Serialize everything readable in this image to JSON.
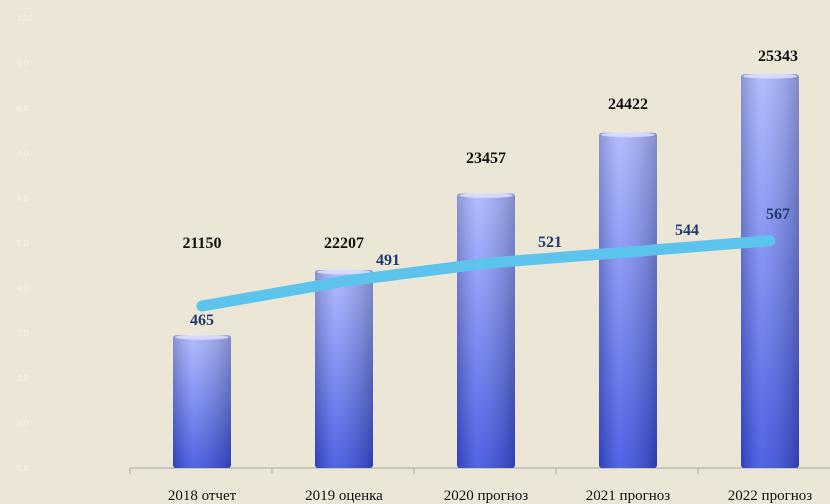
{
  "chart_data": {
    "type": "bar",
    "categories": [
      "2018 отчет",
      "2019 оценка",
      "2020 прогноз",
      "2021 прогноз",
      "2022 прогноз"
    ],
    "series": [
      {
        "values": [
          21150,
          22207,
          23457,
          24422,
          25343
        ]
      },
      {
        "values": [
          465,
          491,
          521,
          544,
          567
        ],
        "type": "line"
      }
    ],
    "bar_heights": [
      2.95,
      4.4,
      6.1,
      7.45,
      8.75
    ],
    "line_levels": [
      3.6,
      4.15,
      4.55,
      4.8,
      5.05
    ],
    "y_ticks": [
      "0,0",
      "1,0",
      "2,0",
      "3,0",
      "4,0",
      "5,0",
      "6,0",
      "7,0",
      "8,0",
      "9,0",
      "10,0"
    ],
    "ylim": [
      0,
      10
    ],
    "bar_colors": {
      "top": "#a9b4ff",
      "bottom": "#3a4fe0"
    },
    "line_color": "#5cc4ec",
    "grid": false,
    "legend": "none"
  }
}
